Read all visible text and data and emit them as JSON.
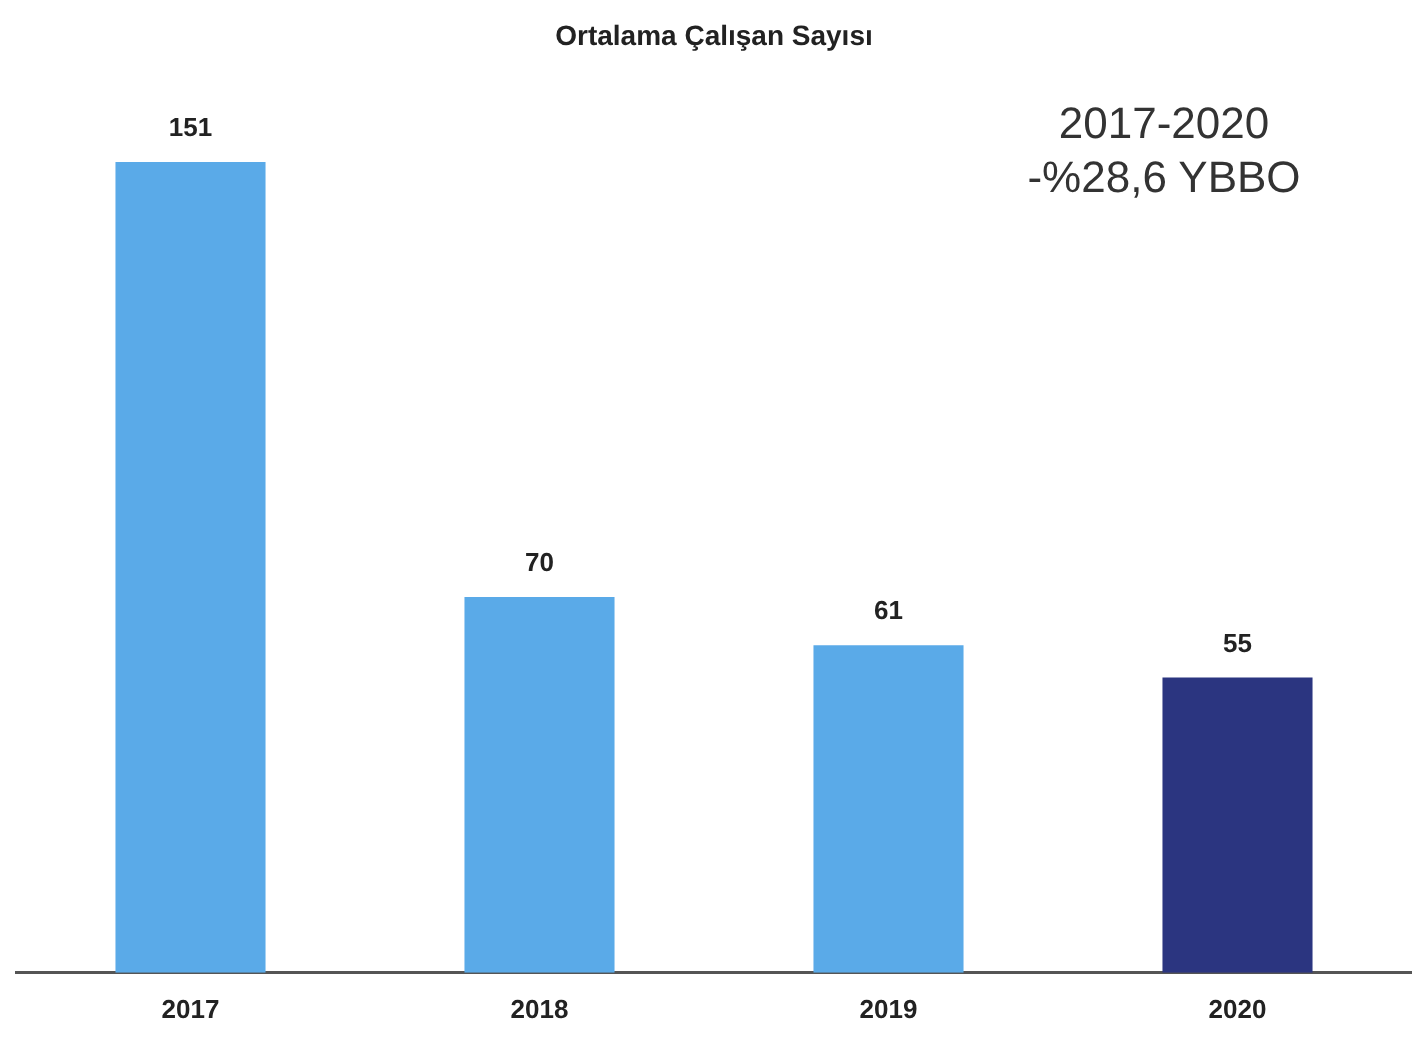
{
  "chart_data": {
    "type": "bar",
    "title": "Ortalama Çalışan Sayısı",
    "categories": [
      "2017",
      "2018",
      "2019",
      "2020"
    ],
    "values": [
      151,
      70,
      61,
      55
    ],
    "colors": [
      "#5aaae8",
      "#5aaae8",
      "#5aaae8",
      "#2b3580"
    ],
    "data_labels": true,
    "annotations": [
      "2017-2020",
      "-%28,6 YBBO"
    ],
    "grid": false,
    "legend": false
  }
}
